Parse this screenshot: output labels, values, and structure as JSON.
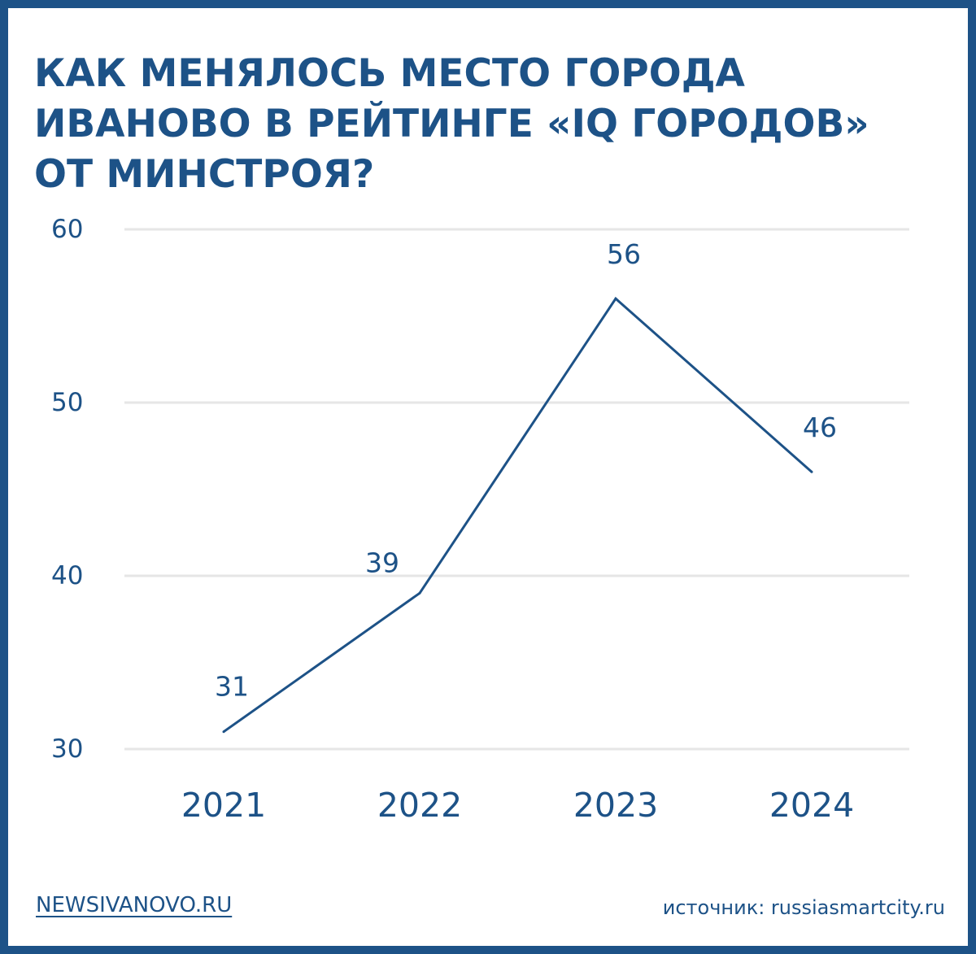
{
  "title_lines": [
    "КАК МЕНЯЛОСЬ МЕСТО ГОРОДА",
    "ИВАНОВО В РЕЙТИНГЕ «IQ ГОРОДОВ»",
    "ОТ МИНСТРОЯ?"
  ],
  "footer": {
    "site": "NEWSIVANOVO.RU",
    "source": "источник: russiasmartcity.ru"
  },
  "colors": {
    "primary": "#1d5287",
    "grid": "#e6e6e6",
    "background": "#ffffff"
  },
  "chart_data": {
    "type": "line",
    "title": "КАК МЕНЯЛОСЬ МЕСТО ГОРОДА ИВАНОВО В РЕЙТИНГЕ «IQ ГОРОДОВ» ОТ МИНСТРОЯ?",
    "categories": [
      "2021",
      "2022",
      "2023",
      "2024"
    ],
    "series": [
      {
        "values": [
          31,
          39,
          56,
          46
        ]
      }
    ],
    "data_labels": [
      "31",
      "39",
      "56",
      "46"
    ],
    "ylim": [
      30,
      60
    ],
    "yticks": [
      "30",
      "40",
      "50",
      "60"
    ],
    "xlabel": "",
    "ylabel": "",
    "grid": true,
    "legend": "none"
  }
}
